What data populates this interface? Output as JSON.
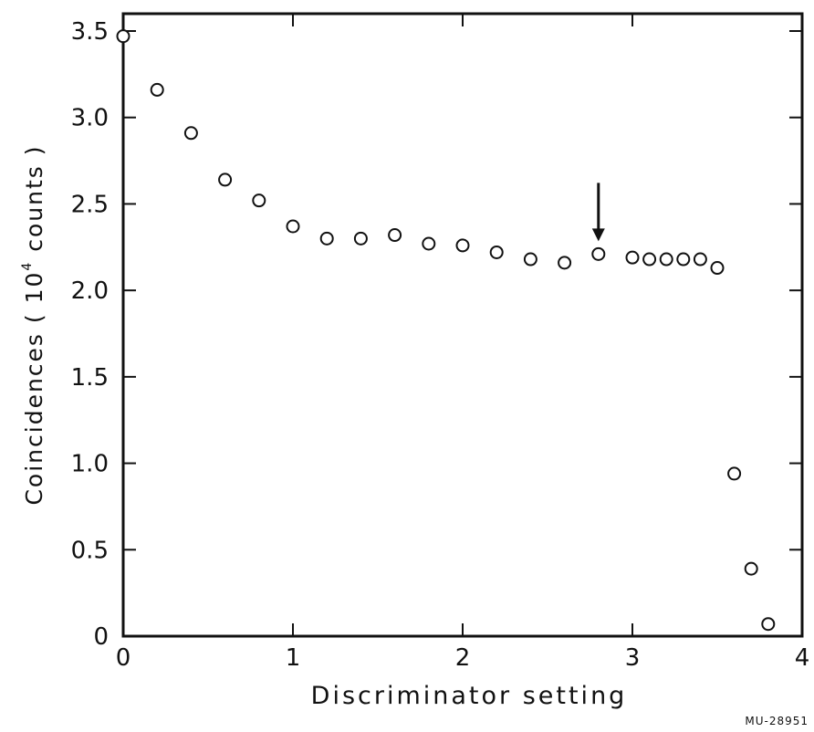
{
  "chart_data": {
    "type": "scatter",
    "xlabel": "Discriminator setting",
    "ylabel": {
      "prefix": "Coincidences  ( 10",
      "exponent": "4",
      "suffix": " counts )"
    },
    "xlim": [
      0,
      4
    ],
    "ylim": [
      0,
      3.5
    ],
    "x_ticks": [
      0,
      1,
      2,
      3,
      4
    ],
    "x_tick_labels": [
      "0",
      "1",
      "2",
      "3",
      "4"
    ],
    "y_ticks": [
      0,
      0.5,
      1.0,
      1.5,
      2.0,
      2.5,
      3.0,
      3.5
    ],
    "y_tick_labels": [
      "0",
      "0.5",
      "1.0",
      "1.5",
      "2.0",
      "2.5",
      "3.0",
      "3.5"
    ],
    "grid": false,
    "marker": "open-circle",
    "series": [
      {
        "x": [
          0.0,
          0.2,
          0.4,
          0.6,
          0.8,
          1.0,
          1.2,
          1.4,
          1.6,
          1.8,
          2.0,
          2.2,
          2.4,
          2.6,
          2.8,
          3.0,
          3.1,
          3.2,
          3.3,
          3.4,
          3.5,
          3.6,
          3.7,
          3.8
        ],
        "y": [
          3.47,
          3.16,
          2.91,
          2.64,
          2.52,
          2.37,
          2.3,
          2.3,
          2.32,
          2.27,
          2.26,
          2.22,
          2.18,
          2.16,
          2.21,
          2.19,
          2.18,
          2.18,
          2.18,
          2.18,
          2.13,
          0.94,
          0.39,
          0.07
        ]
      }
    ],
    "annotations": [
      {
        "type": "arrow",
        "direction": "down",
        "at_x": 2.8
      }
    ]
  },
  "ref_id": "MU-28951"
}
